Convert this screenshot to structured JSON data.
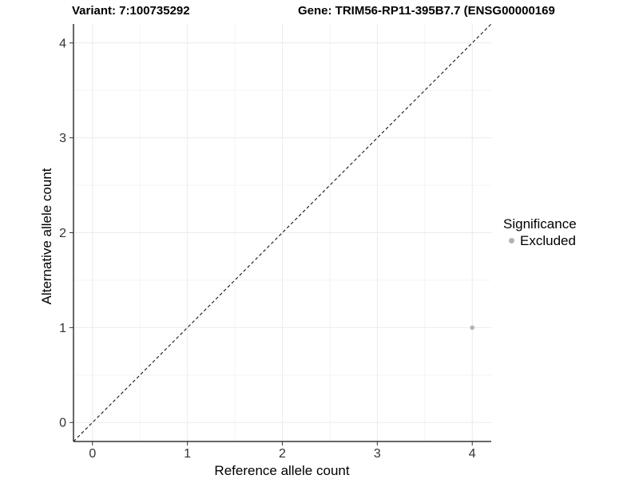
{
  "titles": {
    "left": "Variant: 7:100735292",
    "right": "Gene: TRIM56-RP11-395B7.7 (ENSG00000169"
  },
  "chart_data": {
    "type": "scatter",
    "title": "Variant: 7:100735292  |  Gene: TRIM56-RP11-395B7.7 (ENSG00000169",
    "xlabel": "Reference allele count",
    "ylabel": "Alternative allele count",
    "xlim": [
      -0.2,
      4.2
    ],
    "ylim": [
      -0.2,
      4.2
    ],
    "x_ticks": [
      0,
      1,
      2,
      3,
      4
    ],
    "y_ticks": [
      0,
      1,
      2,
      3,
      4
    ],
    "grid": "major+minor",
    "reference_line": {
      "style": "dashed",
      "from": [
        -0.2,
        -0.2
      ],
      "to": [
        4.2,
        4.2
      ],
      "meaning": "identity line y = x"
    },
    "series": [
      {
        "name": "Excluded",
        "points": [
          {
            "x": 4,
            "y": 1
          }
        ]
      }
    ],
    "legend": {
      "title": "Significance",
      "position": "right",
      "items": [
        {
          "label": "Excluded"
        }
      ]
    }
  },
  "colors": {
    "background": "#ffffff",
    "grid_major": "#ebebeb",
    "grid_minor": "#f4f4f4",
    "axis_line": "#333333",
    "tick_mark": "#333333",
    "tick_text": "#333333",
    "title_text": "#000000",
    "point": "#b3b3b3",
    "reference_line": "#000000"
  }
}
